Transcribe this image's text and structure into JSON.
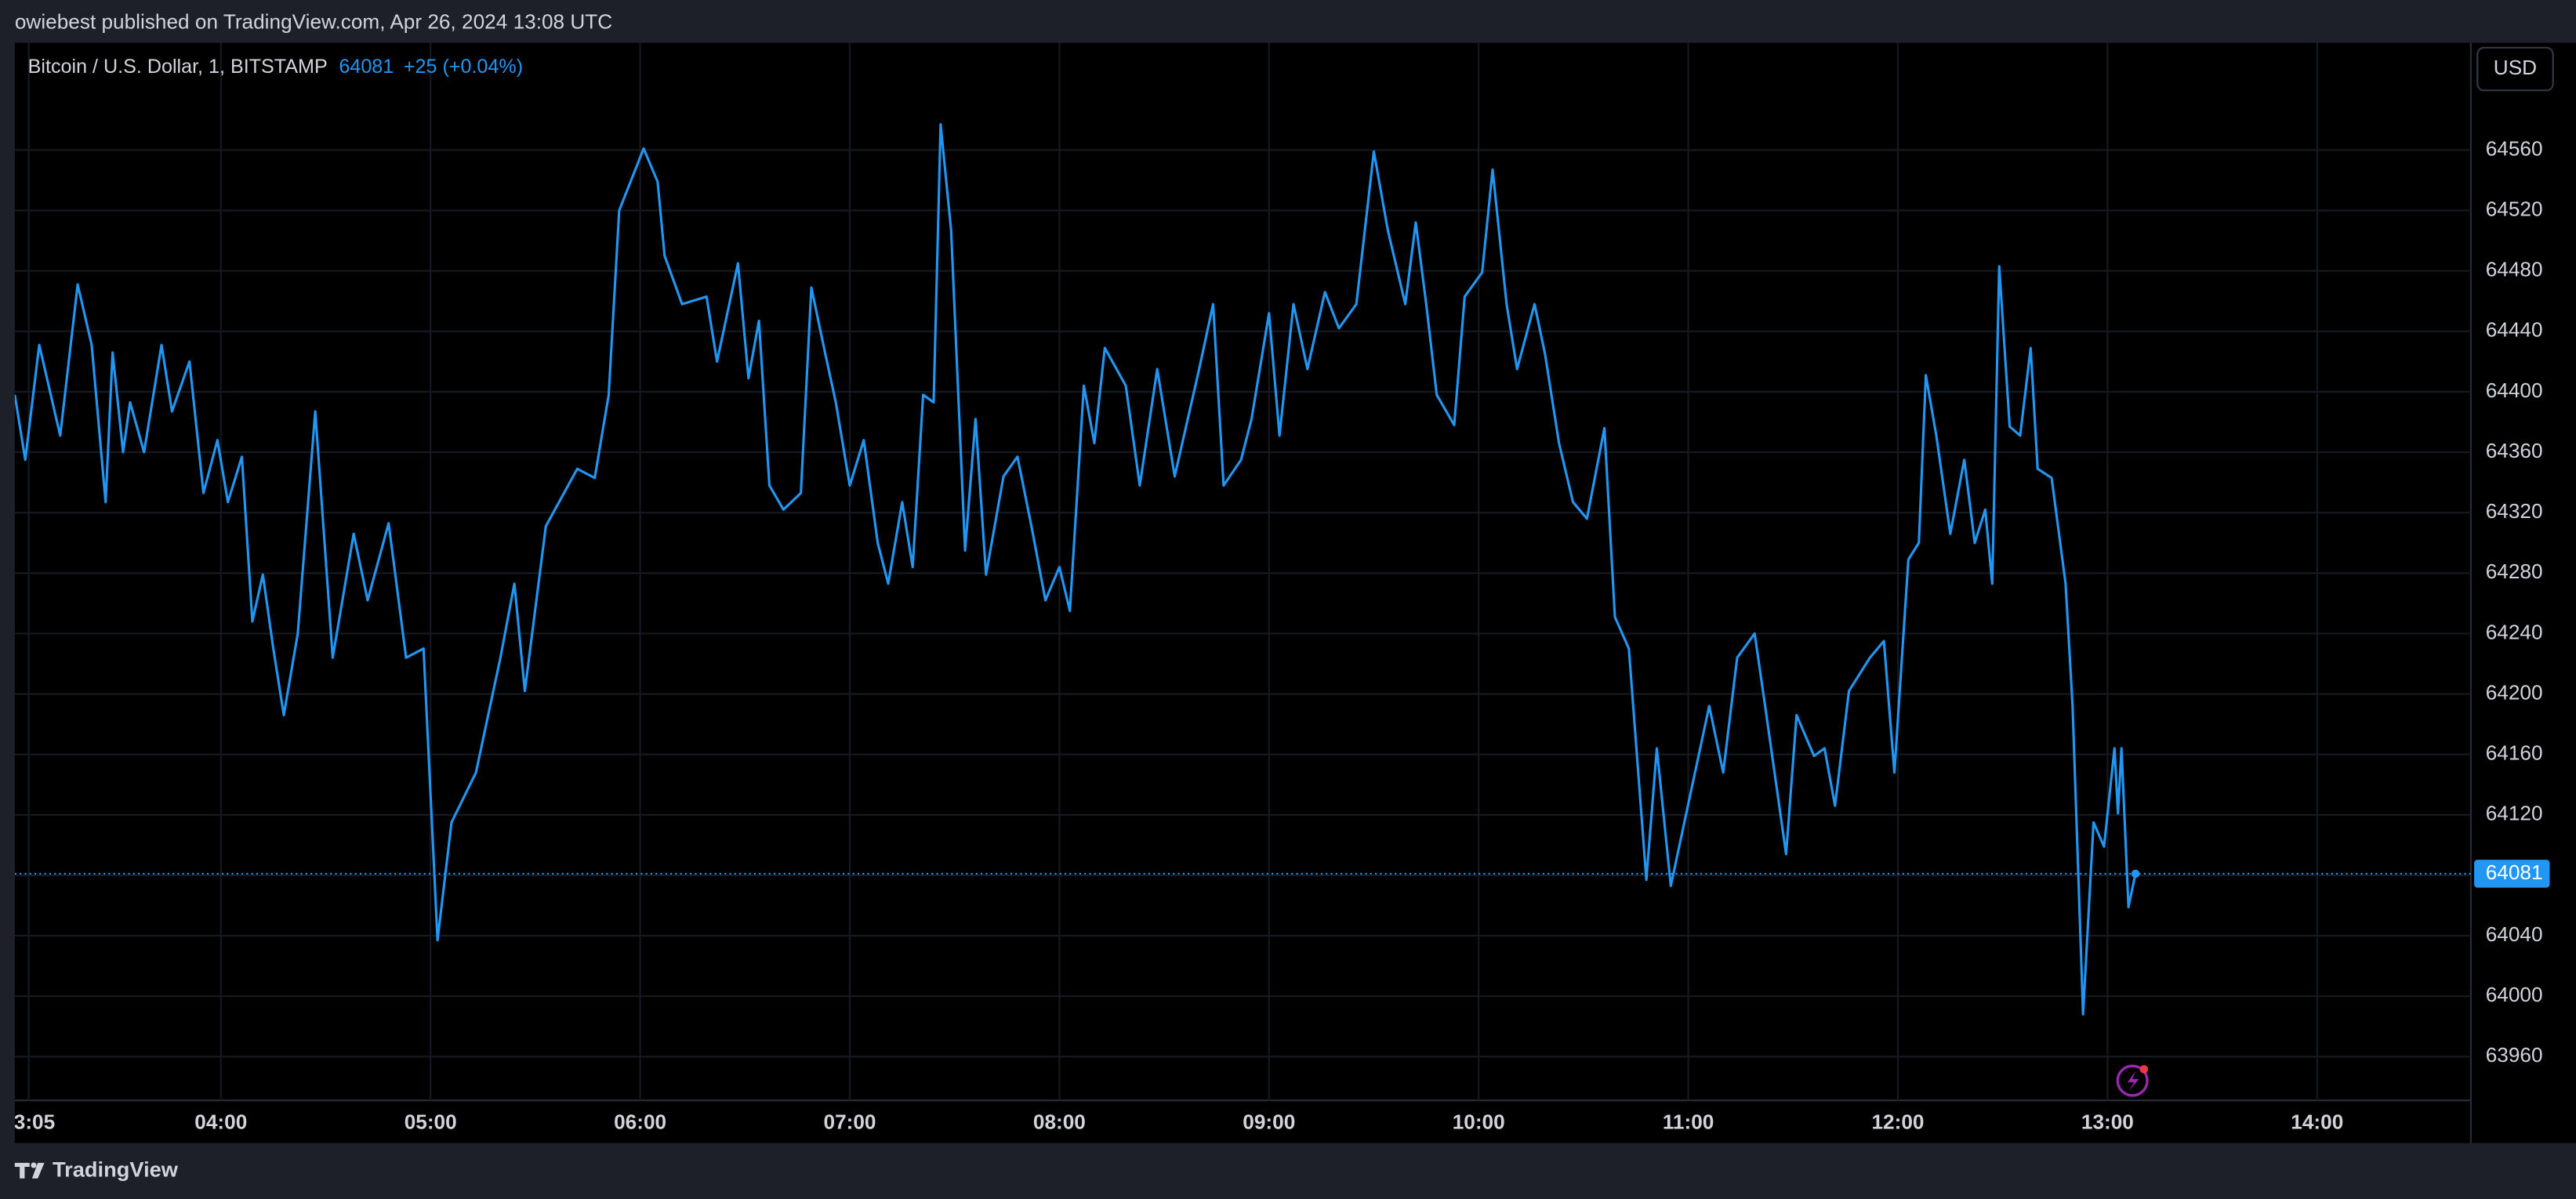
{
  "header": {
    "text": "owiebest published on TradingView.com, Apr 26, 2024 13:08 UTC"
  },
  "chart_data": {
    "type": "line",
    "title": "Bitcoin / U.S. Dollar, 1, BITSTAMP",
    "last_price": 64081,
    "change": "+25 (+0.04%)",
    "currency": "USD",
    "x": [
      "03:01",
      "03:04",
      "03:08",
      "03:14",
      "03:19",
      "03:23",
      "03:27",
      "03:29",
      "03:32",
      "03:34",
      "03:38",
      "03:43",
      "03:46",
      "03:51",
      "03:55",
      "03:59",
      "04:02",
      "04:06",
      "04:09",
      "04:12",
      "04:15",
      "04:18",
      "04:22",
      "04:27",
      "04:32",
      "04:38",
      "04:42",
      "04:48",
      "04:53",
      "04:58",
      "05:02",
      "05:06",
      "05:13",
      "05:20",
      "05:24",
      "05:27",
      "05:33",
      "05:42",
      "05:47",
      "05:51",
      "05:54",
      "06:01",
      "06:05",
      "06:07",
      "06:12",
      "06:19",
      "06:22",
      "06:28",
      "06:31",
      "06:34",
      "06:37",
      "06:41",
      "06:46",
      "06:49",
      "06:53",
      "06:56",
      "07:00",
      "07:04",
      "07:08",
      "07:11",
      "07:15",
      "07:18",
      "07:21",
      "07:24",
      "07:26",
      "07:29",
      "07:33",
      "07:36",
      "07:39",
      "07:44",
      "07:48",
      "07:52",
      "07:56",
      "08:00",
      "08:03",
      "08:07",
      "08:10",
      "08:13",
      "08:19",
      "08:23",
      "08:28",
      "08:33",
      "08:40",
      "08:44",
      "08:47",
      "08:52",
      "08:55",
      "09:00",
      "09:03",
      "09:07",
      "09:11",
      "09:16",
      "09:20",
      "09:25",
      "09:30",
      "09:34",
      "09:39",
      "09:42",
      "09:45",
      "09:48",
      "09:53",
      "09:56",
      "10:01",
      "10:04",
      "10:08",
      "10:11",
      "10:16",
      "10:19",
      "10:23",
      "10:27",
      "10:31",
      "10:36",
      "10:39",
      "10:43",
      "10:48",
      "10:51",
      "10:55",
      "11:01",
      "11:06",
      "11:10",
      "11:14",
      "11:19",
      "11:22",
      "11:28",
      "11:31",
      "11:36",
      "11:39",
      "11:42",
      "11:46",
      "11:52",
      "11:56",
      "11:59",
      "12:03",
      "12:06",
      "12:08",
      "12:11",
      "12:15",
      "12:19",
      "12:22",
      "12:25",
      "12:27",
      "12:29",
      "12:32",
      "12:35",
      "12:38",
      "12:40",
      "12:44",
      "12:48",
      "12:50",
      "12:53",
      "12:56",
      "12:59",
      "13:02",
      "13:03",
      "13:04",
      "13:06",
      "13:08"
    ],
    "series": [
      {
        "name": "BTCUSD",
        "color": "#2196f3",
        "values": [
          64398,
          64355,
          64431,
          64371,
          64471,
          64431,
          64327,
          64426,
          64360,
          64393,
          64360,
          64431,
          64387,
          64420,
          64333,
          64368,
          64327,
          64357,
          64248,
          64279,
          64230,
          64186,
          64240,
          64387,
          64224,
          64306,
          64262,
          64313,
          64224,
          64230,
          64037,
          64115,
          64148,
          64224,
          64273,
          64202,
          64311,
          64349,
          64343,
          64398,
          64520,
          64561,
          64539,
          64490,
          64458,
          64463,
          64420,
          64485,
          64409,
          64447,
          64338,
          64322,
          64333,
          64469,
          64425,
          64393,
          64338,
          64368,
          64300,
          64273,
          64327,
          64284,
          64398,
          64393,
          64577,
          64507,
          64295,
          64382,
          64279,
          64344,
          64357,
          64311,
          64262,
          64284,
          64255,
          64404,
          64366,
          64429,
          64404,
          64338,
          64415,
          64344,
          64415,
          64458,
          64338,
          64355,
          64382,
          64452,
          64371,
          64458,
          64415,
          64466,
          64442,
          64458,
          64559,
          64507,
          64458,
          64512,
          64458,
          64398,
          64378,
          64463,
          64479,
          64547,
          64458,
          64415,
          64458,
          64425,
          64366,
          64327,
          64316,
          64376,
          64251,
          64230,
          64077,
          64164,
          64073,
          64138,
          64192,
          64148,
          64224,
          64240,
          64192,
          64094,
          64186,
          64159,
          64164,
          64126,
          64202,
          64224,
          64235,
          64148,
          64289,
          64300,
          64411,
          64371,
          64306,
          64355,
          64300,
          64322,
          64273,
          64483,
          64377,
          64371,
          64429,
          64349,
          64343,
          64273,
          64192,
          63988,
          64115,
          64099,
          64164,
          64121,
          64164,
          64059,
          64081
        ]
      }
    ],
    "xlim": [
      "03:01",
      "14:44"
    ],
    "xticks": [
      "03:05",
      "04:00",
      "05:00",
      "06:00",
      "07:00",
      "08:00",
      "09:00",
      "10:00",
      "11:00",
      "12:00",
      "13:00",
      "14:00"
    ],
    "ylim": [
      63931,
      64631
    ],
    "yticks": [
      63960,
      64000,
      64040,
      64080,
      64120,
      64160,
      64200,
      64240,
      64280,
      64320,
      64360,
      64400,
      64440,
      64480,
      64520,
      64560
    ],
    "grid": true
  },
  "footer": {
    "brand": "TradingView"
  }
}
